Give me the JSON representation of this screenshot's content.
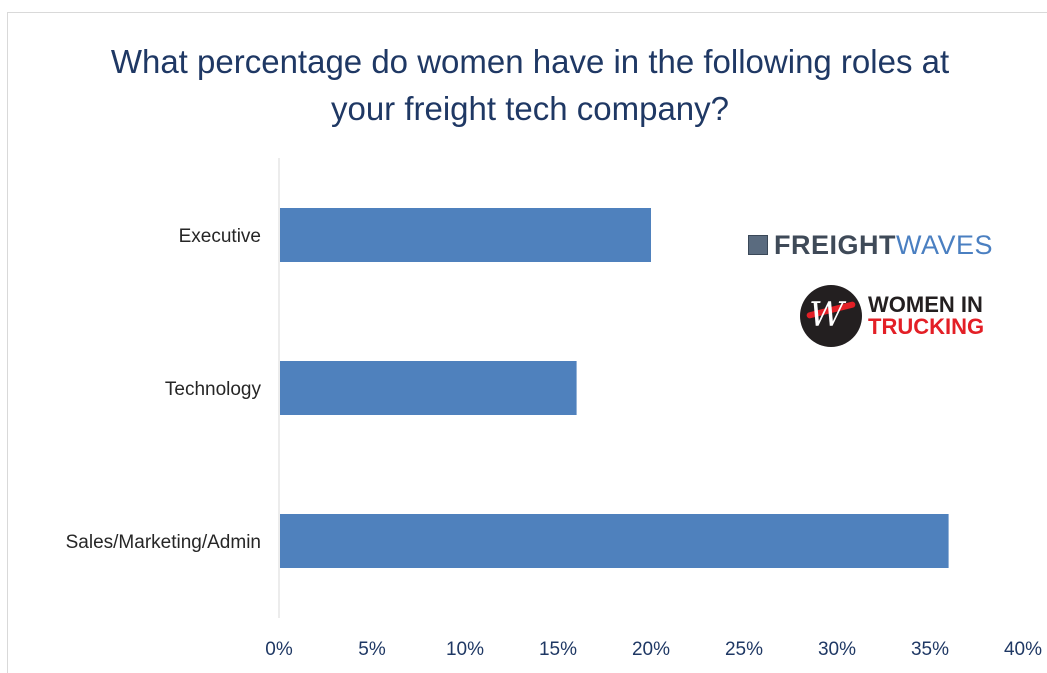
{
  "chart_data": {
    "type": "bar",
    "orientation": "horizontal",
    "title": "What percentage do women have in the following roles at your freight tech company?",
    "categories": [
      "Executive",
      "Technology",
      "Sales/Marketing/Admin"
    ],
    "values": [
      20,
      16,
      36
    ],
    "unit": "%",
    "xlim": [
      0,
      40
    ],
    "xticks": [
      0,
      5,
      10,
      15,
      20,
      25,
      30,
      35,
      40
    ],
    "xtick_labels": [
      "0%",
      "5%",
      "10%",
      "15%",
      "20%",
      "25%",
      "30%",
      "35%",
      "40%"
    ],
    "xlabel": "",
    "ylabel": "",
    "grid": false,
    "bar_color": "#4f81bd"
  },
  "logos": {
    "freightwaves": {
      "word1": "FREIGHT",
      "word2": "WAVES",
      "text_color": "#3f4a58",
      "accent": "#4a7fc1"
    },
    "women_in_trucking": {
      "line1": "WOMEN IN",
      "line2": "TRUCKING",
      "accent": "#e31f26",
      "dark": "#231f20"
    }
  }
}
